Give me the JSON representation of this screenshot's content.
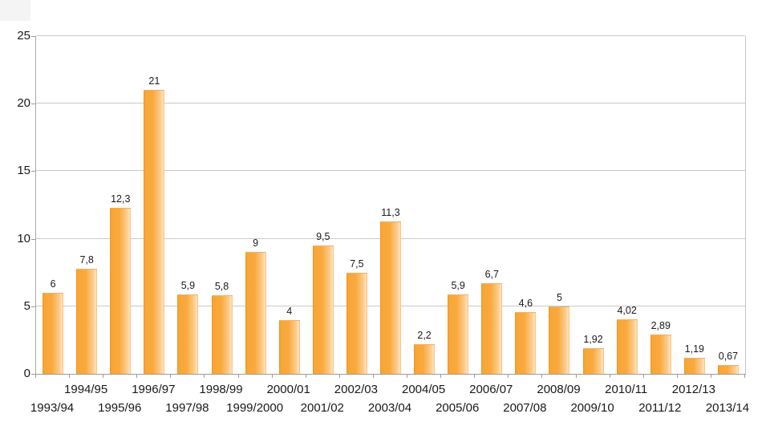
{
  "chart_data": {
    "type": "bar",
    "title": "",
    "xlabel": "",
    "ylabel": "",
    "categories": [
      "1993/94",
      "1994/95",
      "1995/96",
      "1996/97",
      "1997/98",
      "1998/99",
      "1999/2000",
      "2000/01",
      "2001/02",
      "2002/03",
      "2003/04",
      "2004/05",
      "2005/06",
      "2006/07",
      "2007/08",
      "2008/09",
      "2009/10",
      "2010/11",
      "2011/12",
      "2012/13",
      "2013/14"
    ],
    "values": [
      6,
      7.8,
      12.3,
      21,
      5.9,
      5.8,
      9,
      4,
      9.5,
      7.5,
      11.3,
      2.2,
      5.9,
      6.7,
      4.6,
      5,
      1.92,
      4.02,
      2.89,
      1.19,
      0.67
    ],
    "value_labels": [
      "6",
      "7,8",
      "12,3",
      "21",
      "5,9",
      "5,8",
      "9",
      "4",
      "9,5",
      "7,5",
      "11,3",
      "2,2",
      "5,9",
      "6,7",
      "4,6",
      "5",
      "1,92",
      "4,02",
      "2,89",
      "1,19",
      "0,67"
    ],
    "ylim": [
      0,
      25
    ],
    "ytick_step": 5,
    "ytick_labels": [
      "0",
      "5",
      "10",
      "15",
      "20",
      "25"
    ],
    "grid": "horizontal",
    "legend": "none",
    "xlabel_stagger": "even-indices-lower-row, odd-indices-upper-row",
    "colors": {
      "bar_main": "#f9a93e",
      "bar_gradient_left": "#f0971e",
      "bar_gradient_light": "#fde3c0",
      "gridline": "#cacaca",
      "axis": "#9b9b9b",
      "text": "#191919",
      "background": "#ffffff"
    }
  }
}
